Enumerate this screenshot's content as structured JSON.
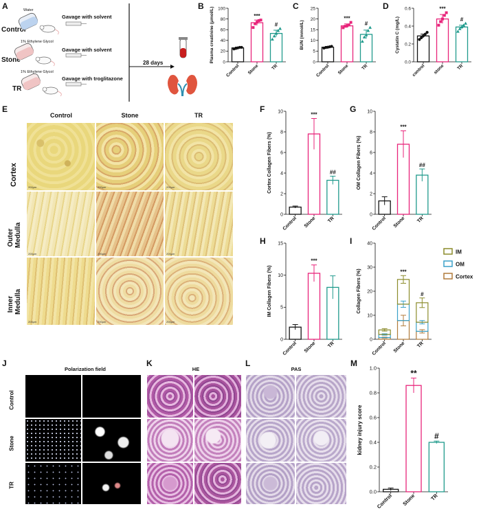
{
  "panels": {
    "A": "A",
    "B": "B",
    "C": "C",
    "D": "D",
    "E": "E",
    "F": "F",
    "G": "G",
    "H": "H",
    "I": "I",
    "J": "J",
    "K": "K",
    "L": "L",
    "M": "M"
  },
  "schematic": {
    "groups": [
      {
        "name": "Control",
        "drink": "Water",
        "treatment": "Gavage with solvent"
      },
      {
        "name": "Stone",
        "drink": "1% Ethylene Glycol",
        "treatment": "Gavage with solvent"
      },
      {
        "name": "TR",
        "drink": "1% Ethylene Glycol",
        "treatment": "Gavage with troglitazone"
      }
    ],
    "duration": "28 days"
  },
  "histology_E": {
    "columns": [
      "Control",
      "Stone",
      "TR"
    ],
    "rows": [
      "Cortex",
      "Outer Medulla",
      "Inner Medulla"
    ],
    "scale": "200μm"
  },
  "histology_J": {
    "title": "Polarization field",
    "rows": [
      "Control",
      "Stone",
      "TR"
    ]
  },
  "histology_K": {
    "title": "HE"
  },
  "histology_L": {
    "title": "PAS"
  },
  "colors": {
    "control": "#111111",
    "stone": "#e8237a",
    "tr": "#1f9a8c",
    "im": "#8b8b2a",
    "om": "#3aa0c8",
    "cortex": "#b07a3a"
  },
  "chart_data": [
    {
      "id": "B",
      "type": "bar",
      "categories": [
        "Control",
        "Stone",
        "TR"
      ],
      "values": [
        26,
        73,
        53
      ],
      "errors": [
        1.5,
        5,
        6
      ],
      "points": [
        [
          24,
          25,
          26,
          27,
          27
        ],
        [
          64,
          71,
          74,
          77,
          78
        ],
        [
          42,
          48,
          53,
          58,
          62
        ]
      ],
      "ylabel": "Plasma creatinine (μmol/L)",
      "ylim": [
        0,
        100
      ],
      "yticks": [
        0,
        20,
        40,
        60,
        80,
        100
      ],
      "sig": [
        "",
        "***",
        "#"
      ]
    },
    {
      "id": "C",
      "type": "bar",
      "categories": [
        "Control",
        "Stone",
        "TR"
      ],
      "values": [
        6.8,
        16.8,
        12.8
      ],
      "errors": [
        0.4,
        0.9,
        2
      ],
      "points": [
        [
          6.4,
          6.7,
          6.8,
          7,
          7.2
        ],
        [
          15.9,
          16.6,
          16.8,
          17.2,
          18.4
        ],
        [
          9.5,
          11.5,
          12.5,
          14.5,
          16
        ]
      ],
      "ylabel": "BUN (mmol/L)",
      "ylim": [
        0,
        25
      ],
      "yticks": [
        0,
        5,
        10,
        15,
        20,
        25
      ],
      "sig": [
        "",
        "***",
        "#"
      ]
    },
    {
      "id": "D",
      "type": "bar",
      "categories": [
        "control",
        "stone",
        "TR"
      ],
      "values": [
        0.29,
        0.48,
        0.39
      ],
      "errors": [
        0.02,
        0.05,
        0.02
      ],
      "points": [
        [
          0.25,
          0.27,
          0.29,
          0.31,
          0.33
        ],
        [
          0.41,
          0.45,
          0.48,
          0.52,
          0.55
        ],
        [
          0.34,
          0.37,
          0.39,
          0.41,
          0.43
        ]
      ],
      "ylabel": "Cystatin C (mg/L)",
      "ylim": [
        0,
        0.6
      ],
      "yticks": [
        0.0,
        0.2,
        0.4,
        0.6
      ],
      "sig": [
        "",
        "***",
        "#"
      ]
    },
    {
      "id": "F",
      "type": "bar",
      "categories": [
        "Control",
        "Stone",
        "TR"
      ],
      "values": [
        0.7,
        7.8,
        3.3
      ],
      "errors": [
        0.1,
        1.5,
        0.4
      ],
      "ylabel": "Cortex Collagen Fibers (%)",
      "ylim": [
        0,
        10
      ],
      "yticks": [
        0,
        2,
        4,
        6,
        8,
        10
      ],
      "sig": [
        "",
        "***",
        "##"
      ]
    },
    {
      "id": "G",
      "type": "bar",
      "categories": [
        "Control",
        "Stone",
        "TR"
      ],
      "values": [
        1.3,
        6.8,
        3.8
      ],
      "errors": [
        0.4,
        1.3,
        0.6
      ],
      "ylabel": "OM Collagen Fibers (%)",
      "ylim": [
        0,
        10
      ],
      "yticks": [
        0,
        2,
        4,
        6,
        8,
        10
      ],
      "sig": [
        "",
        "***",
        "##"
      ]
    },
    {
      "id": "H",
      "type": "bar",
      "categories": [
        "Control",
        "Stone",
        "TR"
      ],
      "values": [
        1.9,
        10.3,
        8.1
      ],
      "errors": [
        0.4,
        1.3,
        1.8
      ],
      "ylabel": "IM Collagen Fibers (%)",
      "ylim": [
        0,
        15
      ],
      "yticks": [
        0,
        5,
        10,
        15
      ],
      "sig": [
        "",
        "***",
        ""
      ]
    },
    {
      "id": "I",
      "type": "bar",
      "stacked": true,
      "categories": [
        "Control",
        "Stone",
        "TR"
      ],
      "series": [
        {
          "name": "Cortex",
          "values": [
            0.7,
            7.8,
            3.3
          ],
          "errors": [
            0.2,
            2.2,
            0.7
          ]
        },
        {
          "name": "OM",
          "values": [
            1.3,
            6.8,
            3.8
          ],
          "errors": [
            0.3,
            1.3,
            0.7
          ]
        },
        {
          "name": "IM",
          "values": [
            1.9,
            10.3,
            8.1
          ],
          "errors": [
            0.5,
            1.6,
            2
          ]
        }
      ],
      "legend": [
        "IM",
        "OM",
        "Cortex"
      ],
      "ylabel": "Collagen Fibers (%)",
      "ylim": [
        0,
        40
      ],
      "yticks": [
        0,
        10,
        20,
        30,
        40
      ],
      "sig": [
        "",
        "***",
        "#"
      ]
    },
    {
      "id": "M",
      "type": "bar",
      "categories": [
        "Control",
        "Stone",
        "TR"
      ],
      "values": [
        0.02,
        0.86,
        0.4
      ],
      "errors": [
        0.01,
        0.06,
        0.01
      ],
      "ylabel": "kidney injury score",
      "ylim": [
        0,
        1.0
      ],
      "yticks": [
        0.0,
        0.2,
        0.4,
        0.6,
        0.8,
        1.0
      ],
      "sig": [
        "",
        "**",
        "#"
      ]
    }
  ]
}
